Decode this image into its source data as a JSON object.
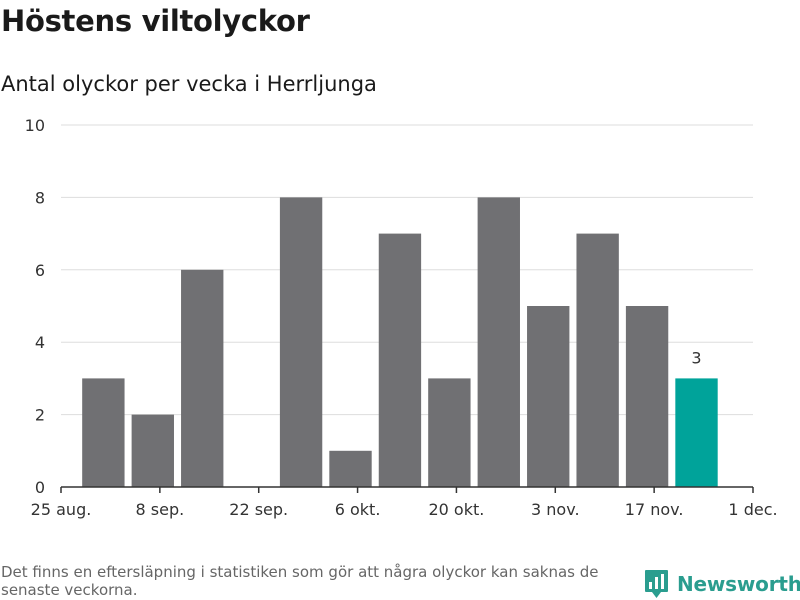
{
  "header": {
    "title": "Höstens viltolyckor",
    "subtitle": "Antal olyckor per vecka i Herrljunga"
  },
  "footer": {
    "note": "Det finns en eftersläpning i statistiken som gör att några olyckor kan saknas de senaste veckorna.",
    "brand": "Newsworthy",
    "brand_icon": "bar-chart-speech-bubble-icon"
  },
  "colors": {
    "bar": "#707073",
    "highlight": "#00a39a",
    "grid": "#dddddd",
    "axis": "#333333",
    "brand": "#2a9d8f"
  },
  "chart_data": {
    "type": "bar",
    "x_unit": "week",
    "x": [
      "2020-08-31",
      "2020-09-07",
      "2020-09-14",
      "2020-09-21",
      "2020-09-28",
      "2020-10-05",
      "2020-10-12",
      "2020-10-19",
      "2020-10-26",
      "2020-11-02",
      "2020-11-09",
      "2020-11-16",
      "2020-11-23"
    ],
    "values": [
      3,
      2,
      6,
      0,
      8,
      1,
      7,
      3,
      8,
      5,
      7,
      5,
      3
    ],
    "highlight": [
      false,
      false,
      false,
      false,
      false,
      false,
      false,
      false,
      false,
      false,
      false,
      false,
      true
    ],
    "data_labels": [
      "",
      "",
      "",
      "",
      "",
      "",
      "",
      "",
      "",
      "",
      "",
      "",
      "3"
    ],
    "xticks": [
      "2020-08-25",
      "2020-09-08",
      "2020-09-22",
      "2020-10-06",
      "2020-10-20",
      "2020-11-03",
      "2020-11-17",
      "2020-12-01"
    ],
    "xtick_labels": [
      "25 aug.",
      "8 sep.",
      "22 sep.",
      "6 okt.",
      "20 okt.",
      "3 nov.",
      "17 nov.",
      "1 dec."
    ],
    "xlim": [
      "2020-08-25",
      "2020-12-01"
    ],
    "ylim": [
      0,
      10
    ],
    "yticks": [
      0,
      2,
      4,
      6,
      8,
      10
    ],
    "ytick_labels": [
      "0",
      "2",
      "4",
      "6",
      "8",
      "10"
    ],
    "grid": true,
    "legend": "none"
  }
}
